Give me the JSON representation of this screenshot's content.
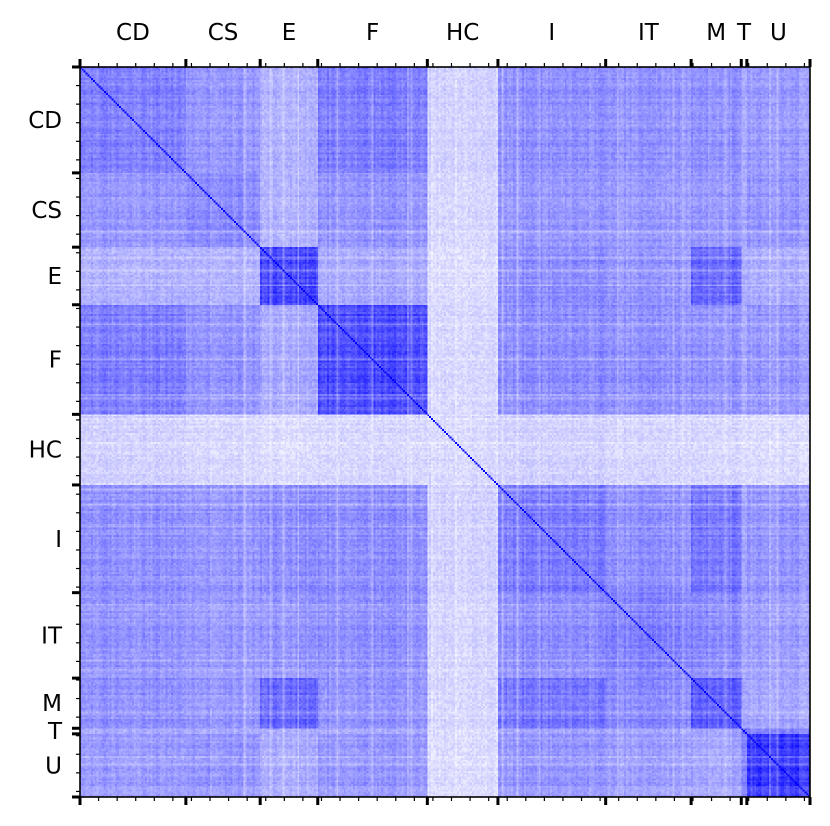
{
  "chart_data": {
    "type": "heatmap",
    "title": "",
    "xlabel": "",
    "ylabel": "",
    "colormap": {
      "low": "#ffdde0",
      "mid": "#ffffff",
      "high": "#0000ff"
    },
    "x_axis_position": "top",
    "grid": false,
    "diagonal_value": 1.0,
    "groups": [
      {
        "label": "CD",
        "size": 57
      },
      {
        "label": "CS",
        "size": 40
      },
      {
        "label": "E",
        "size": 31
      },
      {
        "label": "F",
        "size": 59
      },
      {
        "label": "HC",
        "size": 38
      },
      {
        "label": "I",
        "size": 58
      },
      {
        "label": "IT",
        "size": 46
      },
      {
        "label": "M",
        "size": 27
      },
      {
        "label": "T",
        "size": 3
      },
      {
        "label": "U",
        "size": 34
      }
    ],
    "block_mean_correlation": [
      [
        0.48,
        0.4,
        0.3,
        0.5,
        0.18,
        0.42,
        0.4,
        0.42,
        0.3,
        0.38
      ],
      [
        0.4,
        0.45,
        0.3,
        0.42,
        0.16,
        0.4,
        0.38,
        0.4,
        0.3,
        0.4
      ],
      [
        0.3,
        0.3,
        0.72,
        0.34,
        0.14,
        0.44,
        0.4,
        0.58,
        0.3,
        0.32
      ],
      [
        0.5,
        0.42,
        0.34,
        0.7,
        0.16,
        0.44,
        0.42,
        0.42,
        0.3,
        0.4
      ],
      [
        0.18,
        0.16,
        0.14,
        0.16,
        0.15,
        0.18,
        0.16,
        0.16,
        0.12,
        0.14
      ],
      [
        0.42,
        0.4,
        0.44,
        0.44,
        0.18,
        0.5,
        0.42,
        0.52,
        0.32,
        0.4
      ],
      [
        0.4,
        0.38,
        0.4,
        0.42,
        0.16,
        0.42,
        0.46,
        0.44,
        0.3,
        0.36
      ],
      [
        0.42,
        0.4,
        0.58,
        0.42,
        0.16,
        0.52,
        0.44,
        0.62,
        0.32,
        0.34
      ],
      [
        0.3,
        0.3,
        0.3,
        0.3,
        0.12,
        0.32,
        0.3,
        0.32,
        0.5,
        0.44
      ],
      [
        0.38,
        0.4,
        0.32,
        0.4,
        0.14,
        0.4,
        0.36,
        0.34,
        0.44,
        0.74
      ]
    ]
  }
}
